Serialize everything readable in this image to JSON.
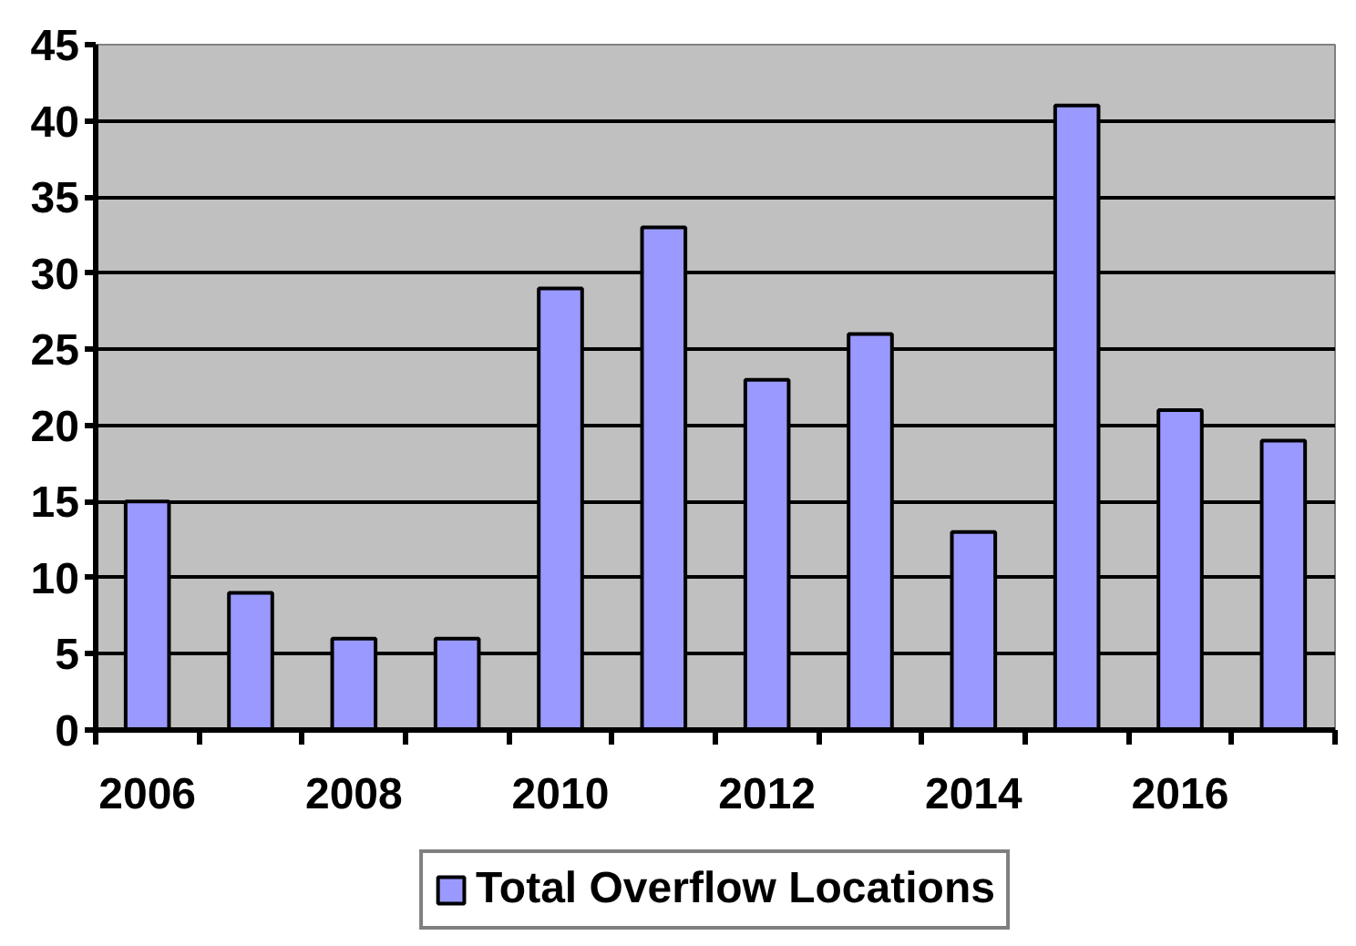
{
  "chart_data": {
    "type": "bar",
    "categories": [
      "2006",
      null,
      "2008",
      null,
      "2010",
      null,
      "2012",
      null,
      "2014",
      null,
      "2016",
      null
    ],
    "series": [
      {
        "name": "Total Overflow Locations",
        "color": "#9999ff",
        "values": [
          15,
          9,
          6,
          6,
          29,
          33,
          23,
          26,
          13,
          41,
          21,
          19
        ]
      }
    ],
    "ylim": [
      0,
      45
    ],
    "yticks": [
      0,
      5,
      10,
      15,
      20,
      25,
      30,
      35,
      40,
      45
    ],
    "grid": "y",
    "legend": "bottom"
  }
}
